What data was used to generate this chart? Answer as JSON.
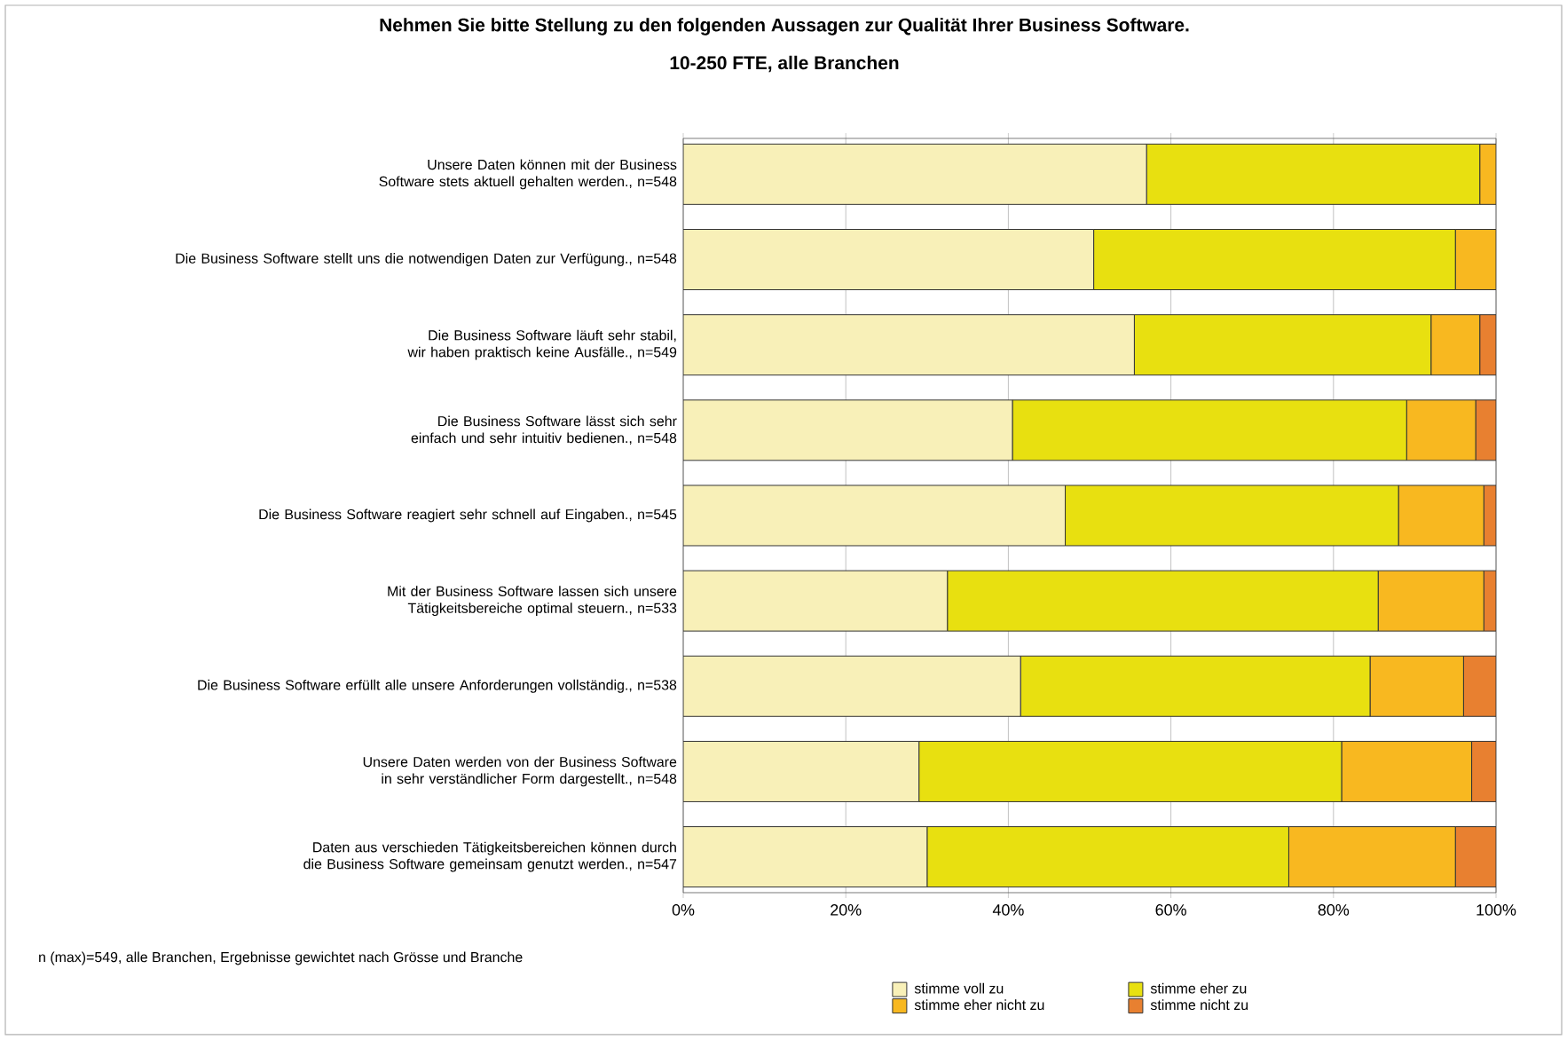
{
  "chart_data": {
    "type": "bar",
    "orientation": "horizontal",
    "stacked": true,
    "title": "Nehmen Sie bitte Stellung zu den folgenden Aussagen zur Qualität Ihrer Business Software.",
    "subtitle": "10-250 FTE, alle Branchen",
    "categories": [
      "Unsere Daten können mit der Business Software stets aktuell gehalten werden., n=548",
      "Die Business Software stellt uns die notwendigen Daten zur Verfügung., n=548",
      "Die Business Software läuft sehr stabil, wir haben praktisch keine Ausfälle., n=549",
      "Die Business Software lässt sich sehr einfach und sehr intuitiv bedienen., n=548",
      "Die Business Software reagiert sehr schnell auf Eingaben., n=545",
      "Mit der Business Software lassen sich unsere Tätigkeitsbereiche optimal steuern., n=533",
      "Die Business Software erfüllt alle unsere Anforderungen vollständig., n=538",
      "Unsere Daten werden von der Business Software in sehr verständlicher Form dargestellt., n=548",
      "Daten aus verschieden Tätigkeitsbereichen können durch die Business Software gemeinsam genutzt werden., n=547"
    ],
    "series": [
      {
        "name": "stimme voll zu",
        "color": "#f8f0b8",
        "values": [
          57,
          50.5,
          55.5,
          40.5,
          47,
          32.5,
          41.5,
          29,
          30
        ]
      },
      {
        "name": "stimme eher zu",
        "color": "#e8e010",
        "values": [
          41,
          44.5,
          36.5,
          48.5,
          41,
          53,
          43,
          52,
          44.5
        ]
      },
      {
        "name": "stimme eher nicht zu",
        "color": "#f8b820",
        "values": [
          2,
          5,
          6,
          8.5,
          10.5,
          13,
          11.5,
          16,
          20.5
        ]
      },
      {
        "name": "stimme nicht zu",
        "color": "#e88030",
        "values": [
          0,
          0,
          2,
          2.5,
          1.5,
          1.5,
          4,
          3,
          5
        ]
      }
    ],
    "xlim": [
      0,
      100
    ],
    "xticks": [
      {
        "value": 0,
        "label": "0%"
      },
      {
        "value": 20,
        "label": "20%"
      },
      {
        "value": 40,
        "label": "40%"
      },
      {
        "value": 60,
        "label": "60%"
      },
      {
        "value": 80,
        "label": "80%"
      },
      {
        "value": 100,
        "label": "100%"
      }
    ],
    "grid": "x",
    "legend": "bottom",
    "annotations": [
      "n (max)=549, alle Branchen, Ergebnisse gewichtet nach Grösse und Branche"
    ]
  }
}
